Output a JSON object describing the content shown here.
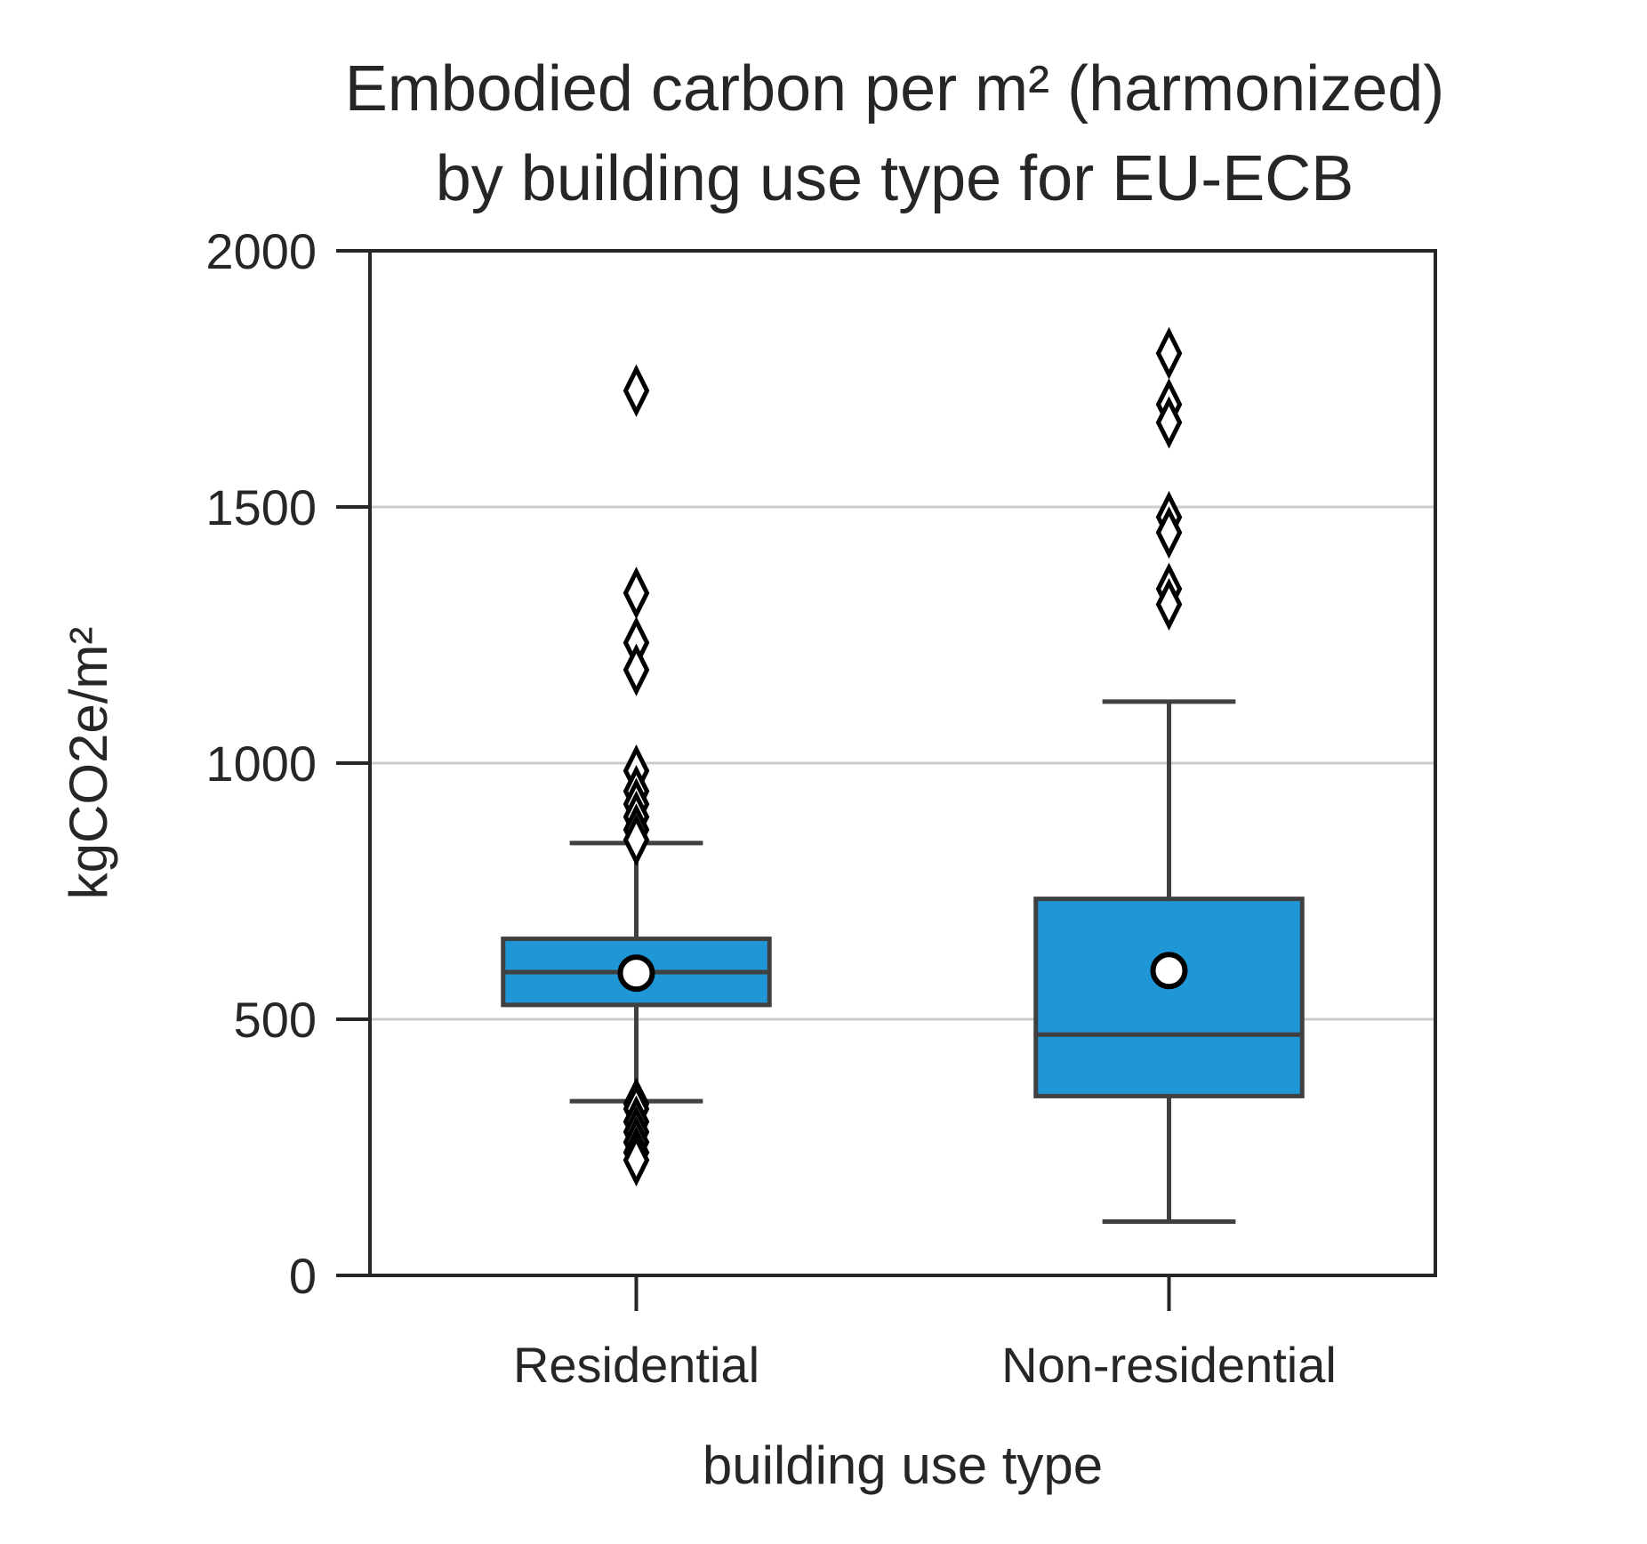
{
  "chart_data": {
    "type": "box",
    "title": [
      "Embodied carbon per m² (harmonized)",
      "by building use type for EU-ECB"
    ],
    "xlabel": "building use type",
    "ylabel": "kgCO2e/m²",
    "ylim": [
      0,
      2000
    ],
    "yticks": [
      0,
      500,
      1000,
      1500,
      2000
    ],
    "grid": "horizontal",
    "box_color": "#1f96d6",
    "line_color": "#404040",
    "categories": [
      "Residential",
      "Non-residential"
    ],
    "boxes": [
      {
        "category": "Residential",
        "whisker_low": 340,
        "q1": 528,
        "median": 592,
        "q3": 657,
        "whisker_high": 844,
        "mean": 590,
        "outliers": [
          1727,
          1332,
          1235,
          1182,
          985,
          945,
          920,
          895,
          870,
          850,
          335,
          325,
          300,
          280,
          260,
          240,
          225
        ]
      },
      {
        "category": "Non-residential",
        "whisker_low": 105,
        "q1": 350,
        "median": 470,
        "q3": 735,
        "whisker_high": 1120,
        "mean": 595,
        "outliers": [
          1800,
          1700,
          1665,
          1480,
          1450,
          1340,
          1310
        ]
      }
    ]
  }
}
